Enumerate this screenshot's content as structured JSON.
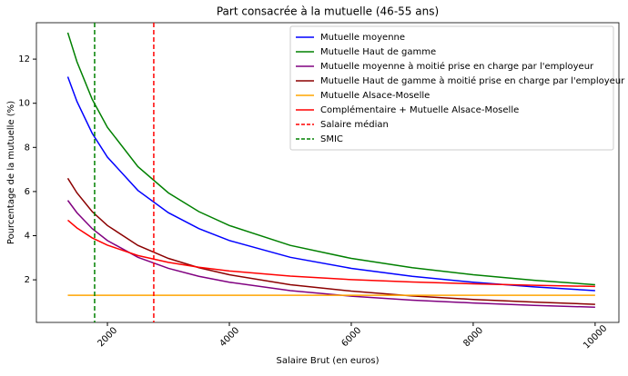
{
  "chart_data": {
    "type": "line",
    "title": "Part consacrée à la mutuelle (46-55 ans)",
    "xlabel": "Salaire Brut (en euros)",
    "ylabel": "Pourcentage de la mutuelle (%)",
    "x": [
      1350,
      1500,
      1750,
      2000,
      2500,
      3000,
      3500,
      4000,
      5000,
      6000,
      7000,
      8000,
      9000,
      10000
    ],
    "series": [
      {
        "name": "Mutuelle moyenne",
        "color": "#0000ff",
        "values": [
          11.2,
          10.08,
          8.64,
          7.56,
          6.05,
          5.04,
          4.32,
          3.78,
          3.02,
          2.52,
          2.16,
          1.89,
          1.68,
          1.51
        ]
      },
      {
        "name": "Mutuelle Haut de gamme",
        "color": "#008000",
        "values": [
          13.2,
          11.88,
          10.18,
          8.91,
          7.13,
          5.94,
          5.09,
          4.46,
          3.56,
          2.97,
          2.55,
          2.23,
          1.98,
          1.78
        ]
      },
      {
        "name": "Mutuelle moyenne à moitié prise en charge par l'employeur",
        "color": "#800080",
        "values": [
          5.6,
          5.04,
          4.32,
          3.78,
          3.02,
          2.52,
          2.16,
          1.89,
          1.51,
          1.26,
          1.08,
          0.95,
          0.84,
          0.76
        ]
      },
      {
        "name": "Mutuelle Haut de gamme à moitié prise en charge par l'employeur",
        "color": "#8b0000",
        "values": [
          6.6,
          5.94,
          5.09,
          4.46,
          3.56,
          2.97,
          2.55,
          2.23,
          1.78,
          1.49,
          1.27,
          1.11,
          0.99,
          0.89
        ]
      },
      {
        "name": "Mutuelle Alsace-Moselle",
        "color": "#ffa500",
        "values": [
          1.3,
          1.3,
          1.3,
          1.3,
          1.3,
          1.3,
          1.3,
          1.3,
          1.3,
          1.3,
          1.3,
          1.3,
          1.3,
          1.3
        ]
      },
      {
        "name": "Complémentaire + Mutuelle Alsace-Moselle",
        "color": "#ff0000",
        "values": [
          4.7,
          4.35,
          3.9,
          3.57,
          3.1,
          2.79,
          2.57,
          2.4,
          2.17,
          2.01,
          1.9,
          1.82,
          1.75,
          1.7
        ]
      }
    ],
    "vlines": [
      {
        "name": "Salaire médian",
        "color": "#ff0000",
        "value": 2760
      },
      {
        "name": "SMIC",
        "color": "#008000",
        "value": 1790
      }
    ],
    "xlim": [
      835,
      10390
    ],
    "xticks": [
      2000,
      4000,
      6000,
      8000,
      10000
    ],
    "ylim": [
      0.07,
      13.65
    ],
    "yticks": [
      2,
      4,
      6,
      8,
      10,
      12
    ],
    "legend": "upper right"
  }
}
